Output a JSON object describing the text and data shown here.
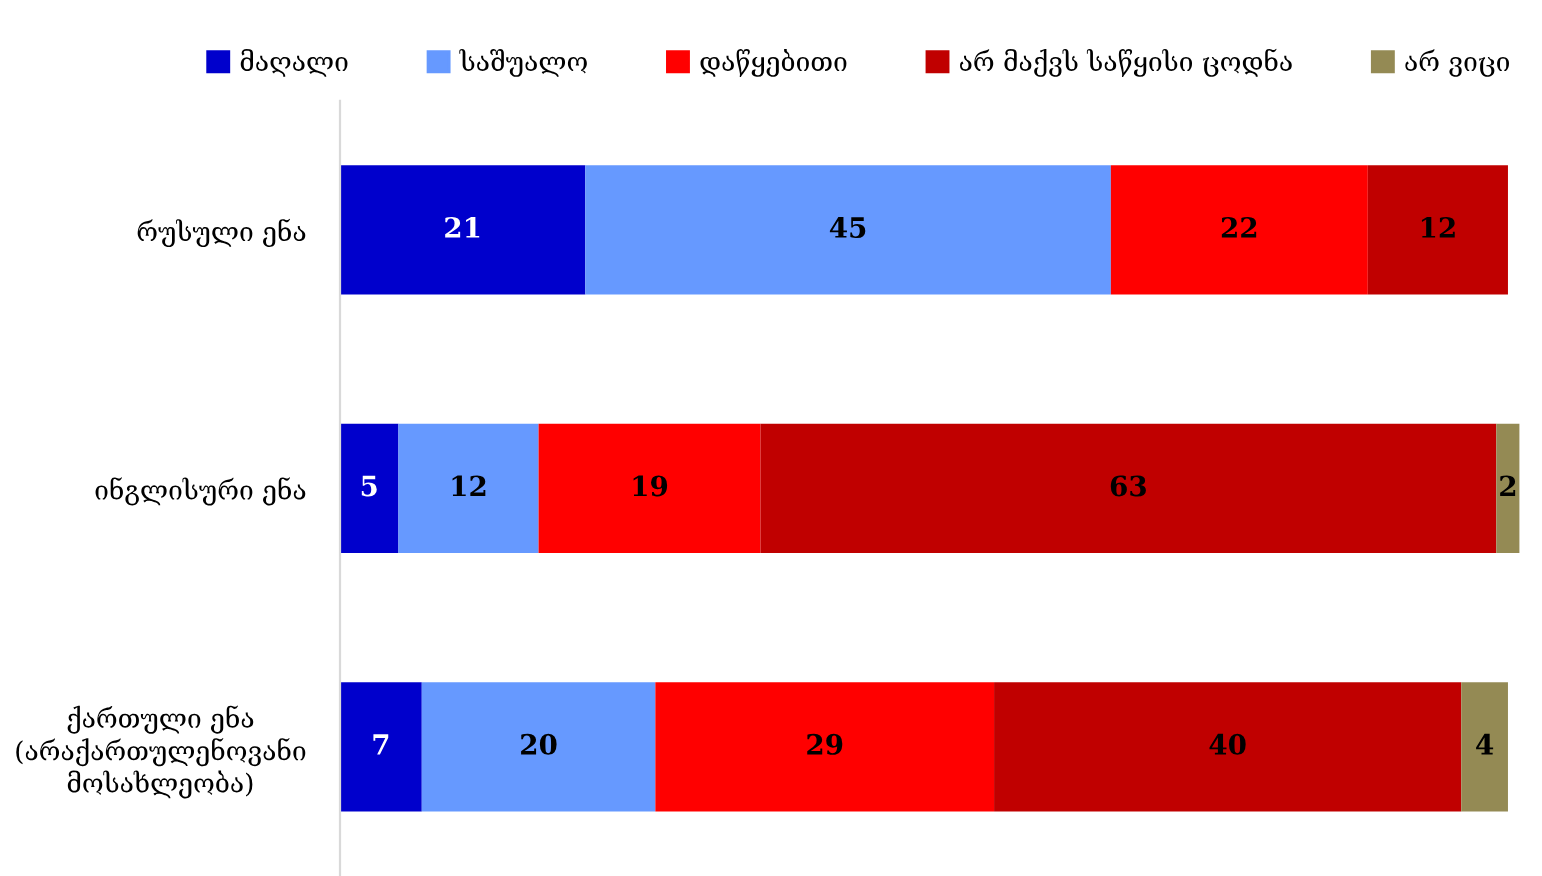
{
  "chart_data": {
    "type": "bar",
    "orientation": "horizontal",
    "stacked": true,
    "data_labels": true,
    "categories": [
      "რუსული ენა",
      "ინგლისური ენა",
      "ქართული ენა\n(არაქართულენოვანი\nმოსახლეობა)"
    ],
    "series": [
      {
        "name": "მაღალი",
        "color": "#0000cc",
        "values": [
          21,
          5,
          7
        ]
      },
      {
        "name": "საშუალო",
        "color": "#6699ff",
        "values": [
          45,
          12,
          20
        ]
      },
      {
        "name": "დაწყებითი",
        "color": "#ff0000",
        "values": [
          22,
          19,
          29
        ]
      },
      {
        "name": "არ მაქვს საწყისი ცოდნა",
        "color": "#c00000",
        "values": [
          12,
          63,
          40
        ]
      },
      {
        "name": "არ ვიცი",
        "color": "#948a54",
        "values": [
          null,
          2,
          4
        ]
      }
    ],
    "xlim": [
      0,
      101
    ],
    "tick_labels": "y",
    "legend": "top"
  }
}
